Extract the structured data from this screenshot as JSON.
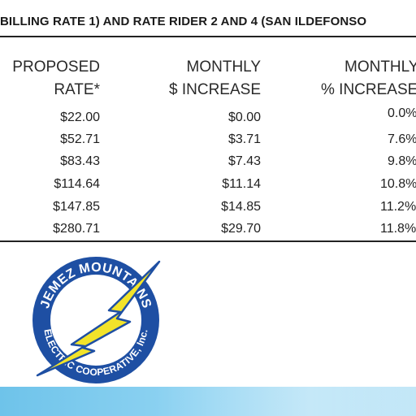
{
  "table": {
    "title": "BILLING RATE 1) AND RATE RIDER 2 AND 4 (SAN ILDEFONSO",
    "headers": [
      {
        "line1": "PROPOSED",
        "line2": "RATE*"
      },
      {
        "line1": "MONTHLY",
        "line2": "$ INCREASE"
      },
      {
        "line1": "MONTHLY",
        "line2": "% INCREASE"
      }
    ],
    "rows": [
      {
        "rate": "$22.00",
        "increase": "$0.00",
        "percent": "0.0%"
      },
      {
        "rate": "$52.71",
        "increase": "$3.71",
        "percent": "7.6%"
      },
      {
        "rate": "$83.43",
        "increase": "$7.43",
        "percent": "9.8%"
      },
      {
        "rate": "$114.64",
        "increase": "$11.14",
        "percent": "10.8%"
      },
      {
        "rate": "$147.85",
        "increase": "$14.85",
        "percent": "11.2%"
      },
      {
        "rate": "$280.71",
        "increase": "$29.70",
        "percent": "11.8%"
      }
    ]
  },
  "logo": {
    "top_text": "JEMEZ MOUNTAINS",
    "bottom_text": "ELECTRIC COOPERATIVE, Inc.",
    "icon": "lightning-bolt-icon",
    "colors": {
      "ring": "#1e4fa3",
      "bolt": "#f2e32a",
      "outline": "#1e4fa3"
    }
  },
  "colors": {
    "band": "#8fd3f2",
    "rule": "#222222"
  }
}
